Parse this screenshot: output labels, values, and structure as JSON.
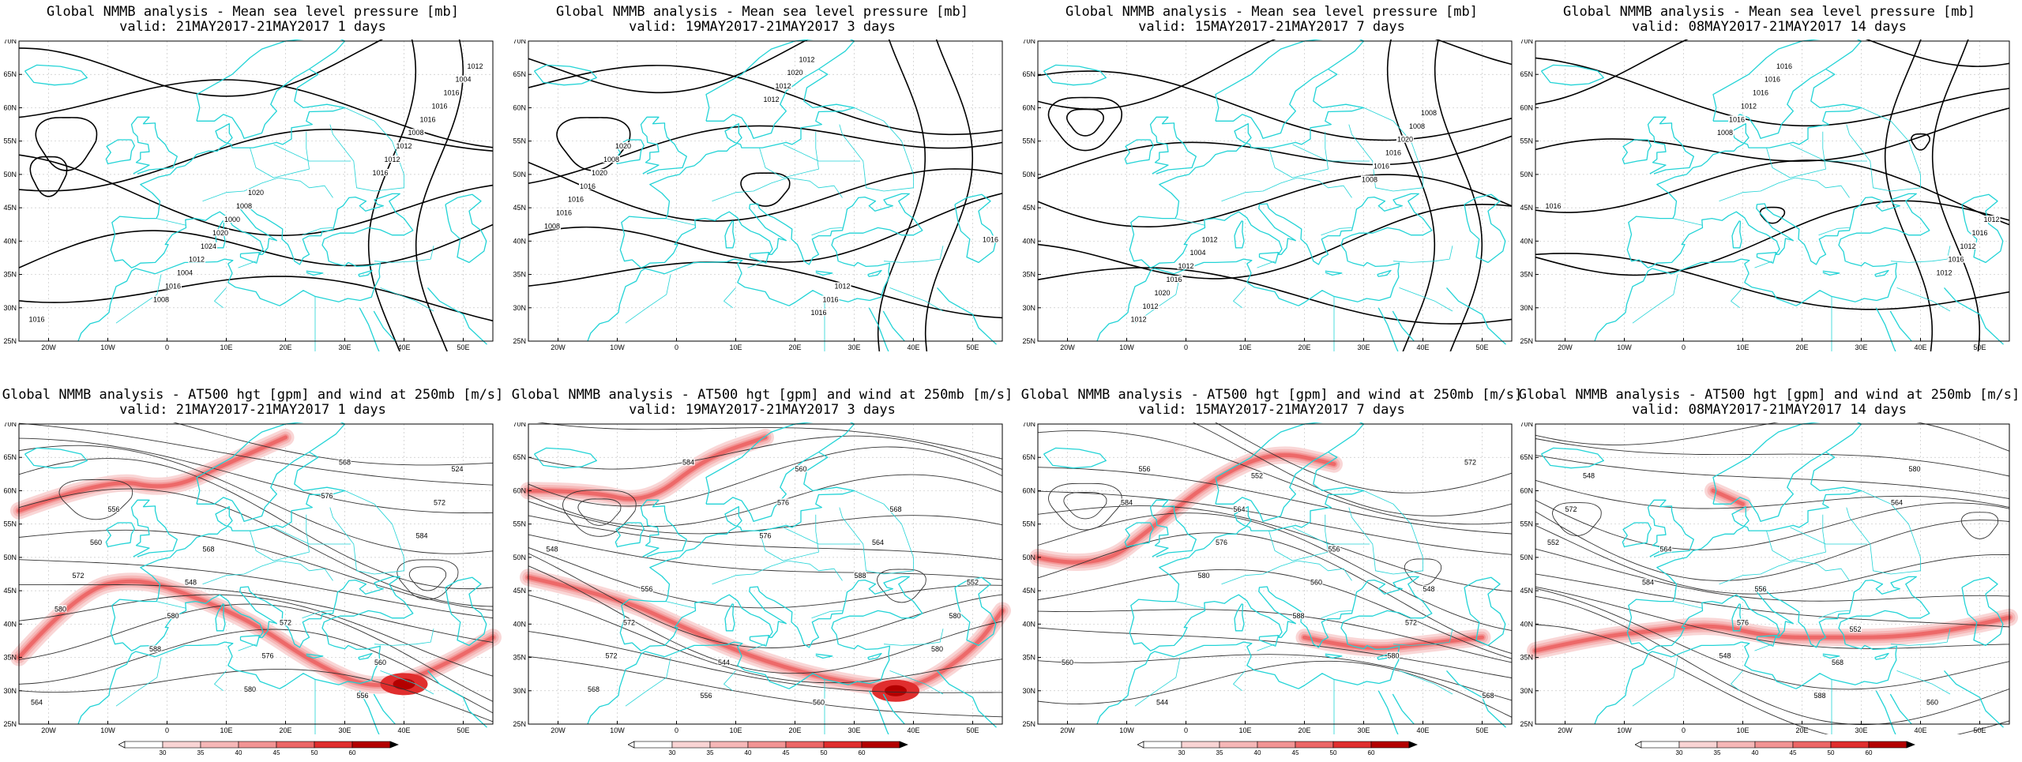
{
  "colors": {
    "coastline": "#22d3d6",
    "isobar": "#000000",
    "height_contour": "#333333",
    "wind_30": "#f9d4d4",
    "wind_35": "#f6b7b7",
    "wind_40": "#f29494",
    "wind_45": "#ec6666",
    "wind_50": "#e02e2e",
    "wind_60": "#b30000"
  },
  "axes": {
    "lat_ticks": [
      "70N",
      "65N",
      "60N",
      "55N",
      "50N",
      "45N",
      "40N",
      "35N",
      "30N",
      "25N"
    ],
    "lon_ticks": [
      "20W",
      "10W",
      "0",
      "10E",
      "20E",
      "30E",
      "40E",
      "50E"
    ]
  },
  "colorbar": {
    "labels": [
      "30",
      "35",
      "40",
      "45",
      "50",
      "60"
    ]
  },
  "mslp_panels": [
    {
      "title": "Global NMMB analysis - Mean sea level pressure [mb]",
      "valid": "valid: 21MAY2017-21MAY2017   1 days",
      "labels": [
        "1016",
        "1020",
        "1012",
        "1008",
        "1004",
        "1000",
        "1016",
        "1020",
        "1016",
        "1024",
        "1016",
        "1012",
        "1008",
        "1004",
        "1012",
        "1016",
        "1012",
        "1008",
        "1016"
      ]
    },
    {
      "title": "Global NMMB analysis - Mean sea level pressure [mb]",
      "valid": "valid: 19MAY2017-21MAY2017   3 days",
      "labels": [
        "1020",
        "1012",
        "1008",
        "1016",
        "1020",
        "1016",
        "1016",
        "1012",
        "1016",
        "1020",
        "1016",
        "1012",
        "1008",
        "1012",
        "1016"
      ]
    },
    {
      "title": "Global NMMB analysis - Mean sea level pressure [mb]",
      "valid": "valid: 15MAY2017-21MAY2017   7 days",
      "labels": [
        "1012",
        "1008",
        "1004",
        "1008",
        "1012",
        "1020",
        "1016",
        "1016",
        "1020",
        "1016",
        "1012",
        "1008",
        "1012"
      ]
    },
    {
      "title": "Global NMMB analysis - Mean sea level pressure [mb]",
      "valid": "valid: 08MAY2017-21MAY2017   14 days",
      "labels": [
        "1016",
        "1016",
        "1016",
        "1012",
        "1016",
        "1016",
        "1012",
        "1012",
        "1016",
        "1016",
        "1008",
        "1012"
      ]
    }
  ],
  "z500_panels": [
    {
      "title": "Global NMMB analysis - AT500 hgt [gpm] and wind at 250mb [m/s]",
      "valid": "valid: 21MAY2017-21MAY2017   1 days",
      "labels": [
        "564",
        "568",
        "560",
        "556",
        "572",
        "524",
        "548",
        "556",
        "560",
        "576",
        "572",
        "580",
        "568",
        "572",
        "580",
        "584",
        "588",
        "576",
        "580"
      ]
    },
    {
      "title": "Global NMMB analysis - AT500 hgt [gpm] and wind at 250mb [m/s]",
      "valid": "valid: 19MAY2017-21MAY2017   3 days",
      "labels": [
        "556",
        "560",
        "548",
        "544",
        "568",
        "572",
        "560",
        "552",
        "556",
        "564",
        "572",
        "576",
        "580",
        "584",
        "588",
        "568",
        "576",
        "580"
      ]
    },
    {
      "title": "Global NMMB analysis - AT500 hgt [gpm] and wind at 250mb [m/s]",
      "valid": "valid: 15MAY2017-21MAY2017   7 days",
      "labels": [
        "552",
        "548",
        "544",
        "556",
        "560",
        "564",
        "572",
        "556",
        "560",
        "568",
        "576",
        "580",
        "584",
        "588",
        "572",
        "580"
      ]
    },
    {
      "title": "Global NMMB analysis - AT500 hgt [gpm] and wind at 250mb [m/s]",
      "valid": "valid: 08MAY2017-21MAY2017   14 days",
      "labels": [
        "552",
        "548",
        "556",
        "560",
        "564",
        "568",
        "572",
        "576",
        "580",
        "584",
        "588",
        "552",
        "548",
        "564"
      ]
    }
  ]
}
